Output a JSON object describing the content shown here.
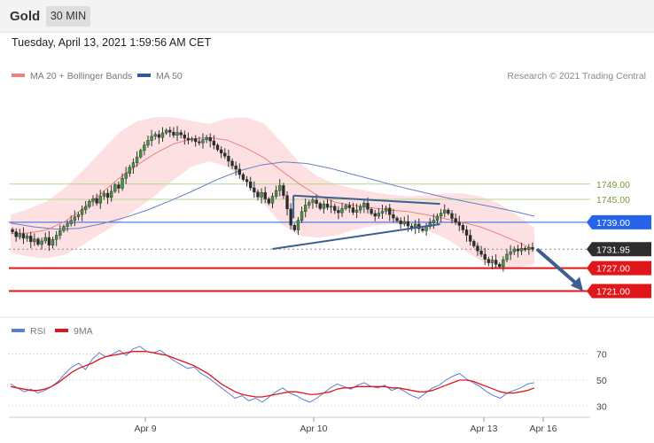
{
  "header": {
    "symbol": "Gold",
    "timeframe": "30 MIN"
  },
  "datetime": "Tuesday, April 13, 2021 1:59:56 AM CET",
  "legend": {
    "ma20_label": "MA 20 + Bollinger Bands",
    "ma50_label": "MA 50",
    "copyright": "Research © 2021 Trading Central"
  },
  "rsi_legend": {
    "rsi_label": "RSI",
    "ma_label": "9MA"
  },
  "colors": {
    "ma20": "#f08080",
    "bands": "#fde0e2",
    "ma50": "#2f5aa0",
    "support": "#e0161b",
    "resistance_green": "#b6d68f",
    "pivot_blue": "#2563eb",
    "trend": "#3b5f8f",
    "rsi": "#5b7fd6",
    "rsi_ma": "#e0161b"
  },
  "chart_data": [
    {
      "type": "candlestick",
      "series": "Gold 30 MIN",
      "x_ticks": [
        "Apr 9",
        "Apr 10",
        "Apr 13",
        "Apr 16"
      ],
      "ylim": [
        1716,
        1774
      ],
      "levels": [
        {
          "value": 1749.0,
          "label": "1749.00",
          "color": "#b6d68f",
          "style": "green-line"
        },
        {
          "value": 1745.0,
          "label": "1745.00",
          "color": "#b6d68f",
          "style": "green-line"
        },
        {
          "value": 1739.0,
          "label": "1739.00",
          "color": "#2563eb",
          "style": "blue-pivot"
        },
        {
          "value": 1731.95,
          "label": "1731.95",
          "color": "#333333",
          "style": "current-price"
        },
        {
          "value": 1727.0,
          "label": "1727.00",
          "color": "#e0161b",
          "style": "red-support"
        },
        {
          "value": 1721.0,
          "label": "1721.00",
          "color": "#e0161b",
          "style": "red-support"
        }
      ],
      "closes": [
        1736.5,
        1735.2,
        1736.0,
        1734.8,
        1735.4,
        1733.9,
        1734.6,
        1733.2,
        1734.1,
        1735.0,
        1733.0,
        1734.5,
        1735.6,
        1736.8,
        1737.9,
        1738.6,
        1739.5,
        1740.4,
        1741.0,
        1742.3,
        1743.1,
        1744.5,
        1745.2,
        1744.0,
        1745.8,
        1746.6,
        1745.5,
        1747.1,
        1748.8,
        1747.9,
        1750.5,
        1751.8,
        1753.4,
        1754.6,
        1756.1,
        1757.8,
        1759.2,
        1760.4,
        1761.5,
        1762.0,
        1761.2,
        1762.4,
        1763.1,
        1762.6,
        1761.8,
        1762.5,
        1761.9,
        1761.0,
        1760.5,
        1760.9,
        1760.1,
        1759.8,
        1760.6,
        1761.2,
        1760.3,
        1759.2,
        1758.0,
        1757.1,
        1756.3,
        1755.0,
        1753.8,
        1752.9,
        1751.5,
        1750.2,
        1749.6,
        1748.0,
        1746.9,
        1745.6,
        1746.8,
        1745.1,
        1744.0,
        1745.8,
        1747.3,
        1748.6,
        1746.0,
        1742.5,
        1738.2,
        1737.0,
        1739.5,
        1741.8,
        1743.5,
        1744.2,
        1744.8,
        1743.9,
        1742.6,
        1743.8,
        1742.9,
        1743.2,
        1742.1,
        1741.5,
        1742.6,
        1743.4,
        1742.8,
        1741.6,
        1742.2,
        1743.1,
        1744.0,
        1742.4,
        1741.3,
        1740.6,
        1741.4,
        1741.9,
        1742.7,
        1741.0,
        1740.1,
        1739.4,
        1738.6,
        1739.2,
        1738.0,
        1737.6,
        1738.5,
        1737.3,
        1736.8,
        1737.9,
        1738.8,
        1739.5,
        1740.6,
        1741.4,
        1742.2,
        1741.3,
        1740.0,
        1739.0,
        1738.2,
        1737.0,
        1735.6,
        1734.0,
        1732.8,
        1731.5,
        1730.6,
        1729.3,
        1728.4,
        1729.1,
        1728.0,
        1727.4,
        1729.2,
        1730.6,
        1731.3,
        1732.0,
        1731.5,
        1732.2,
        1731.8,
        1732.4,
        1731.95
      ],
      "ma20_points": [
        1736.0,
        1736.2,
        1737.0,
        1739.2,
        1742.5,
        1746.5,
        1750.5,
        1754.0,
        1757.0,
        1759.5,
        1760.8,
        1761.2,
        1760.5,
        1758.5,
        1756.0,
        1752.5,
        1749.0,
        1746.0,
        1744.2,
        1743.4,
        1742.8,
        1742.2,
        1741.8,
        1741.0,
        1740.0,
        1739.0,
        1737.8,
        1736.0,
        1734.0,
        1731.8
      ],
      "ma50_points": [
        1738.8,
        1737.8,
        1737.2,
        1737.4,
        1738.6,
        1740.2,
        1742.2,
        1744.6,
        1747.2,
        1750.0,
        1752.4,
        1754.0,
        1754.8,
        1754.4,
        1753.2,
        1751.6,
        1750.0,
        1748.4,
        1747.0,
        1745.6,
        1744.4,
        1743.2,
        1742.0,
        1740.6
      ],
      "bollinger_upper": [
        1741.0,
        1742.5,
        1744.5,
        1748.0,
        1752.5,
        1757.5,
        1762.5,
        1765.5,
        1766.5,
        1766.5,
        1765.5,
        1764.8,
        1766.2,
        1766.5,
        1765.0,
        1760.0,
        1754.5,
        1751.0,
        1749.0,
        1747.8,
        1747.0,
        1746.2,
        1745.8,
        1746.0,
        1746.5,
        1746.6,
        1745.8,
        1744.0,
        1741.0,
        1737.5
      ],
      "bollinger_lower": [
        1731.0,
        1730.0,
        1729.5,
        1730.5,
        1733.0,
        1736.0,
        1739.0,
        1742.5,
        1746.0,
        1750.0,
        1753.5,
        1755.0,
        1753.5,
        1750.0,
        1744.0,
        1738.5,
        1735.5,
        1735.0,
        1735.5,
        1737.0,
        1738.0,
        1738.5,
        1738.2,
        1737.0,
        1735.0,
        1732.0,
        1729.0,
        1726.8,
        1727.0,
        1728.0
      ],
      "trendlines": [
        {
          "name": "resistance",
          "x": [
            0.54,
            0.82
          ],
          "y": [
            1746.0,
            1743.8
          ]
        },
        {
          "name": "support",
          "x": [
            0.5,
            0.82
          ],
          "y": [
            1732.0,
            1738.5
          ]
        }
      ],
      "forecast_arrow": {
        "from": 1731.95,
        "to": 1721.0
      }
    },
    {
      "type": "line",
      "series": [
        {
          "name": "RSI",
          "values": [
            47,
            44,
            41,
            43,
            40,
            42,
            45,
            49,
            55,
            60,
            63,
            58,
            66,
            71,
            68,
            70,
            73,
            69,
            74,
            76,
            72,
            71,
            73,
            69,
            65,
            62,
            59,
            60,
            55,
            52,
            48,
            44,
            40,
            36,
            38,
            34,
            36,
            33,
            37,
            41,
            44,
            40,
            38,
            35,
            33,
            36,
            40,
            44,
            47,
            45,
            43,
            46,
            48,
            45,
            44,
            46,
            42,
            44,
            41,
            38,
            36,
            40,
            44,
            46,
            50,
            53,
            55,
            51,
            48,
            45,
            41,
            38,
            36,
            40,
            42,
            44,
            47,
            48
          ],
          "color": "#5b7fd6"
        },
        {
          "name": "9MA",
          "values": [
            45,
            44,
            43,
            42,
            42,
            43,
            45,
            48,
            52,
            56,
            59,
            61,
            63,
            66,
            68,
            69,
            70,
            71,
            72,
            72,
            72,
            71,
            70,
            69,
            67,
            65,
            63,
            61,
            58,
            55,
            51,
            47,
            44,
            41,
            39,
            38,
            37,
            37,
            38,
            39,
            40,
            41,
            41,
            40,
            39,
            39,
            40,
            41,
            43,
            44,
            44,
            45,
            45,
            45,
            45,
            45,
            44,
            44,
            43,
            42,
            41,
            41,
            42,
            44,
            46,
            48,
            50,
            50,
            49,
            47,
            45,
            43,
            41,
            40,
            40,
            41,
            42,
            44
          ],
          "color": "#e0161b"
        }
      ],
      "levels": [
        70,
        50,
        30
      ],
      "ylim": [
        22,
        80
      ]
    }
  ]
}
